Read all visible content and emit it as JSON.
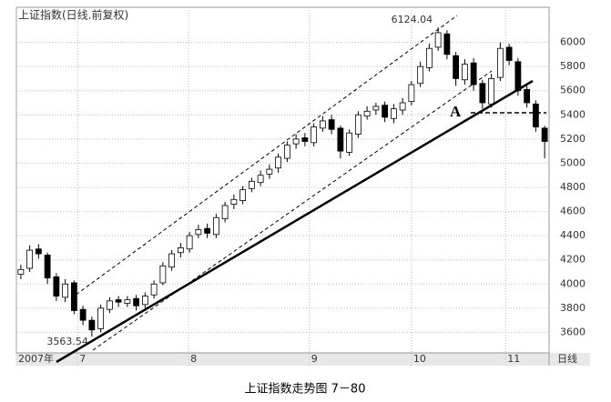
{
  "chart_data": {
    "type": "candlestick",
    "title": "上证指数(日线.前复权)",
    "caption": "上证指数走势图 7－80",
    "period_label": "日线",
    "annotation": "A",
    "open": [
      4080,
      4130,
      4290,
      4240,
      4060,
      3890,
      4010,
      3790,
      3700,
      3630,
      3790,
      3870,
      3840,
      3880,
      3830,
      3910,
      4010,
      4140,
      4260,
      4290,
      4410,
      4460,
      4410,
      4540,
      4660,
      4690,
      4790,
      4840,
      4910,
      4960,
      5040,
      5160,
      5210,
      5170,
      5290,
      5360,
      5290,
      5090,
      5240,
      5390,
      5440,
      5480,
      5370,
      5440,
      5510,
      5660,
      5790,
      5960,
      6070,
      5890,
      5690,
      5830,
      5660,
      5490,
      5710,
      5960,
      5840,
      5610,
      5490,
      5290
    ],
    "high": [
      4160,
      4320,
      4330,
      4260,
      4090,
      4040,
      4030,
      3820,
      3730,
      3830,
      3890,
      3900,
      3900,
      3910,
      3930,
      4030,
      4180,
      4280,
      4340,
      4430,
      4490,
      4500,
      4580,
      4680,
      4740,
      4810,
      4880,
      4940,
      4990,
      5080,
      5180,
      5240,
      5250,
      5330,
      5390,
      5400,
      5310,
      5280,
      5430,
      5470,
      5500,
      5510,
      5490,
      5540,
      5680,
      5840,
      5990,
      6124.04,
      6100,
      5920,
      5860,
      5870,
      5690,
      5740,
      6000,
      5990,
      5870,
      5640,
      5520,
      5310
    ],
    "low": [
      4040,
      4100,
      4210,
      4000,
      3860,
      3850,
      3750,
      3660,
      3563.54,
      3600,
      3760,
      3810,
      3810,
      3780,
      3800,
      3880,
      3990,
      4110,
      4220,
      4260,
      4380,
      4380,
      4380,
      4510,
      4620,
      4660,
      4760,
      4810,
      4870,
      4920,
      5010,
      5120,
      5140,
      5140,
      5260,
      5240,
      5040,
      5060,
      5210,
      5360,
      5400,
      5340,
      5330,
      5400,
      5480,
      5630,
      5760,
      5930,
      5860,
      5640,
      5650,
      5600,
      5450,
      5460,
      5680,
      5810,
      5560,
      5460,
      5260,
      5040
    ],
    "close": [
      4120,
      4280,
      4250,
      4050,
      3900,
      4000,
      3780,
      3700,
      3620,
      3800,
      3860,
      3850,
      3870,
      3820,
      3900,
      4000,
      4150,
      4250,
      4300,
      4400,
      4450,
      4420,
      4550,
      4650,
      4700,
      4780,
      4850,
      4900,
      4950,
      5050,
      5150,
      5200,
      5180,
      5300,
      5350,
      5280,
      5100,
      5250,
      5400,
      5430,
      5470,
      5380,
      5450,
      5500,
      5650,
      5800,
      5950,
      6080,
      5900,
      5700,
      5820,
      5650,
      5500,
      5700,
      5950,
      5850,
      5600,
      5500,
      5300,
      5180
    ],
    "up_color": "#ffffff",
    "down_color": "#000000",
    "xlim": [
      0,
      60
    ],
    "xticks": [
      {
        "value": 0,
        "label": "2007年"
      },
      {
        "value": 6.9,
        "label": "7"
      },
      {
        "value": 19.4,
        "label": "8"
      },
      {
        "value": 33,
        "label": "9"
      },
      {
        "value": 44.5,
        "label": "10"
      },
      {
        "value": 55.1,
        "label": "11"
      }
    ],
    "ylim": [
      3430,
      6200
    ],
    "yticks": [
      3600,
      3800,
      4000,
      4200,
      4400,
      4600,
      4800,
      5000,
      5200,
      5400,
      5600,
      5800,
      6000
    ],
    "grid": true
  }
}
